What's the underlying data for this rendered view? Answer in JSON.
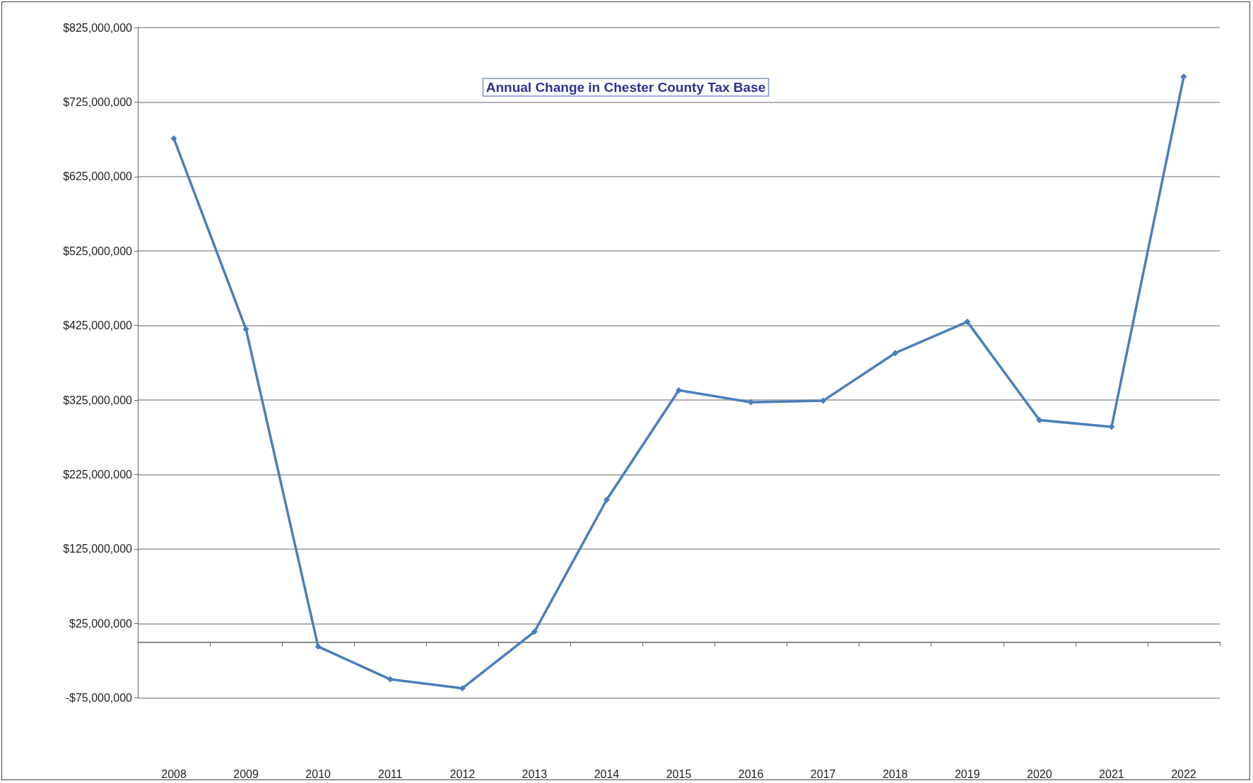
{
  "chart_data": {
    "type": "line",
    "title": "Annual Change in Chester County Tax Base",
    "categories": [
      "2008",
      "2009",
      "2010",
      "2011",
      "2012",
      "2013",
      "2014",
      "2015",
      "2016",
      "2017",
      "2018",
      "2019",
      "2020",
      "2021",
      "2022"
    ],
    "series": [
      {
        "color": "#4a7ebb",
        "values": [
          676000000,
          420000000,
          -6000000,
          -50000000,
          -62000000,
          14000000,
          191000000,
          338000000,
          322000000,
          324000000,
          388000000,
          430000000,
          298000000,
          289000000,
          759000000
        ]
      }
    ],
    "ylim": [
      -75000000,
      825000000
    ],
    "yticks": [
      {
        "value": -75000000,
        "label": "-$75,000,000"
      },
      {
        "value": 25000000,
        "label": "$25,000,000"
      },
      {
        "value": 125000000,
        "label": "$125,000,000"
      },
      {
        "value": 225000000,
        "label": "$225,000,000"
      },
      {
        "value": 325000000,
        "label": "$325,000,000"
      },
      {
        "value": 425000000,
        "label": "$425,000,000"
      },
      {
        "value": 525000000,
        "label": "$525,000,000"
      },
      {
        "value": 625000000,
        "label": "$625,000,000"
      },
      {
        "value": 725000000,
        "label": "$725,000,000"
      },
      {
        "value": 825000000,
        "label": "$825,000,000"
      }
    ],
    "grid": "y",
    "marker": "diamond",
    "line_style": "solid"
  }
}
